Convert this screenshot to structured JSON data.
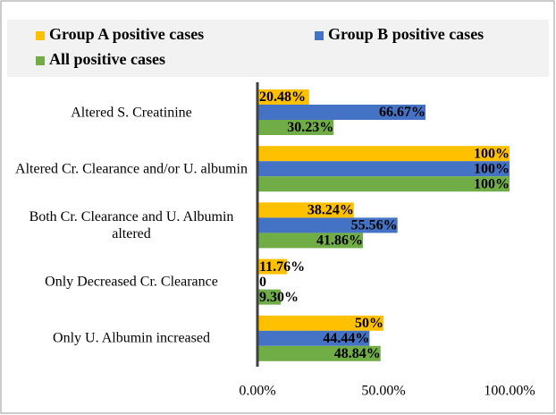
{
  "chart_data": {
    "type": "hbar",
    "categories": [
      "Altered S. Creatinine",
      "Altered Cr. Clearance and/or U. albumin",
      "Both Cr. Clearance and U. Albumin altered",
      "Only Decreased Cr. Clearance",
      "Only U. Albumin increased"
    ],
    "series": [
      {
        "name": "Group A positive cases",
        "color": "#ffc000",
        "values": [
          20.48,
          100,
          38.24,
          11.76,
          50
        ],
        "value_labels": [
          "20.48%",
          "100%",
          "38.24%",
          "11.76%",
          "50%"
        ]
      },
      {
        "name": "Group B positive cases",
        "color": "#4472c4",
        "values": [
          66.67,
          100,
          55.56,
          0,
          44.44
        ],
        "value_labels": [
          "66.67%",
          "100%",
          "55.56%",
          "0",
          "44.44%"
        ]
      },
      {
        "name": "All positive cases",
        "color": "#70ad47",
        "values": [
          30.23,
          100,
          41.86,
          9.3,
          48.84
        ],
        "value_labels": [
          "30.23%",
          "100%",
          "41.86%",
          "9.30%",
          "48.84%"
        ]
      }
    ],
    "xlim": [
      0,
      100
    ],
    "xticks": [
      {
        "value": 0,
        "label": "0.00%"
      },
      {
        "value": 50,
        "label": "50.00%"
      },
      {
        "value": 100,
        "label": "100.00%"
      }
    ],
    "legend": "top"
  }
}
